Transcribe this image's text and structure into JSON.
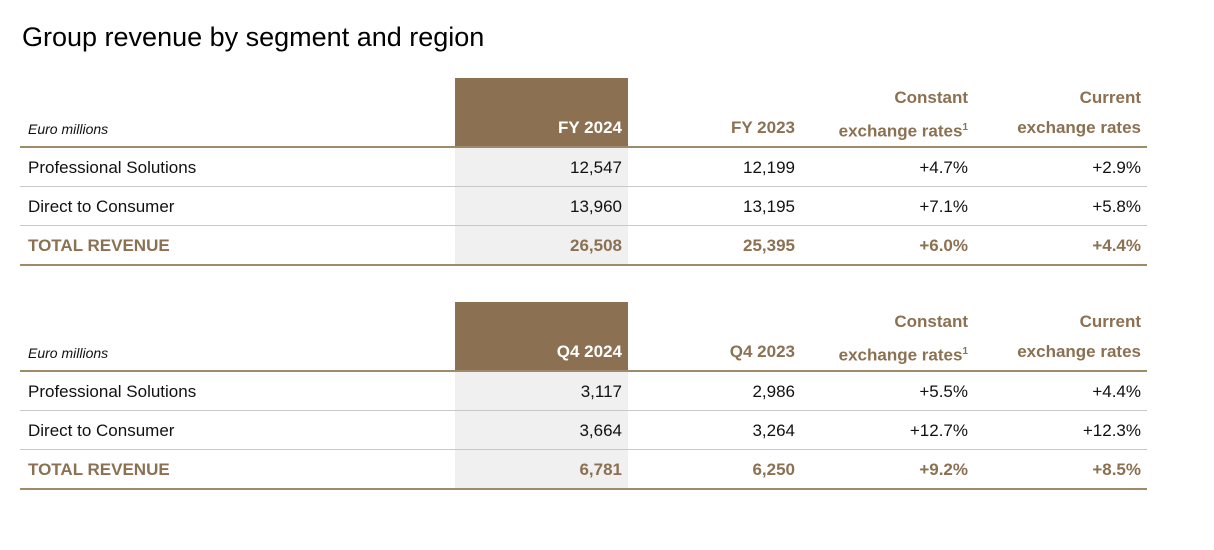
{
  "title": "Group revenue by segment and region",
  "tables": [
    {
      "unit_label": "Euro millions",
      "columns": [
        {
          "label": "FY 2024"
        },
        {
          "label": "FY 2023"
        },
        {
          "line1": "Constant",
          "line2": "exchange rates",
          "sup": "1"
        },
        {
          "line1": "Current",
          "line2": "exchange rates"
        }
      ],
      "rows": [
        [
          "Professional Solutions",
          "12,547",
          "12,199",
          "+4.7%",
          "+2.9%"
        ],
        [
          "Direct to Consumer",
          "13,960",
          "13,195",
          "+7.1%",
          "+5.8%"
        ]
      ],
      "total_row": [
        "TOTAL REVENUE",
        "26,508",
        "25,395",
        "+6.0%",
        "+4.4%"
      ]
    },
    {
      "unit_label": "Euro millions",
      "columns": [
        {
          "label": "Q4 2024"
        },
        {
          "label": "Q4 2023"
        },
        {
          "line1": "Constant",
          "line2": "exchange rates",
          "sup": "1"
        },
        {
          "line1": "Current",
          "line2": "exchange rates"
        }
      ],
      "rows": [
        [
          "Professional Solutions",
          "3,117",
          "2,986",
          "+5.5%",
          "+4.4%"
        ],
        [
          "Direct to Consumer",
          "3,664",
          "3,264",
          "+12.7%",
          "+12.3%"
        ]
      ],
      "total_row": [
        "TOTAL REVENUE",
        "6,781",
        "6,250",
        "+9.2%",
        "+8.5%"
      ]
    }
  ]
}
